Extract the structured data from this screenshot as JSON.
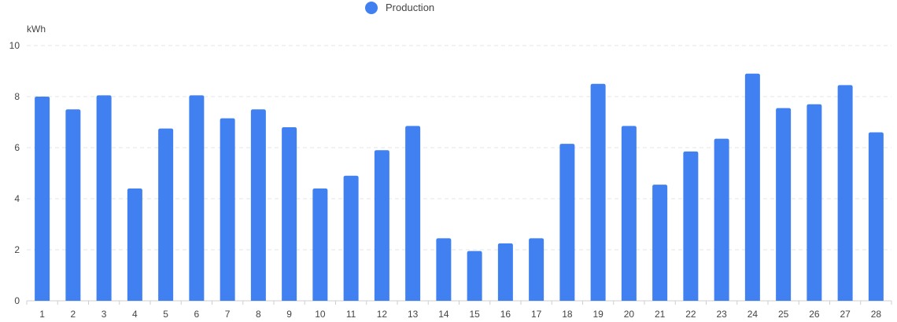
{
  "legend": {
    "items": [
      {
        "label": "Production",
        "color": "#4080f0"
      }
    ]
  },
  "chart_data": {
    "type": "bar",
    "title": "",
    "xlabel": "",
    "ylabel": "kWh",
    "ylim": [
      0,
      10
    ],
    "yticks": [
      0,
      2,
      4,
      6,
      8,
      10
    ],
    "grid": true,
    "legend_position": "top-center",
    "categories": [
      "1",
      "2",
      "3",
      "4",
      "5",
      "6",
      "7",
      "8",
      "9",
      "10",
      "11",
      "12",
      "13",
      "14",
      "15",
      "16",
      "17",
      "18",
      "19",
      "20",
      "21",
      "22",
      "23",
      "24",
      "25",
      "26",
      "27",
      "28"
    ],
    "series": [
      {
        "name": "Production",
        "color": "#4080f0",
        "values": [
          8.0,
          7.5,
          8.05,
          4.4,
          6.75,
          8.05,
          7.15,
          7.5,
          6.8,
          4.4,
          4.9,
          5.9,
          6.85,
          2.45,
          1.95,
          2.25,
          2.45,
          6.15,
          8.5,
          6.85,
          4.55,
          5.85,
          6.35,
          8.9,
          7.55,
          7.7,
          8.45,
          6.6
        ]
      }
    ]
  }
}
